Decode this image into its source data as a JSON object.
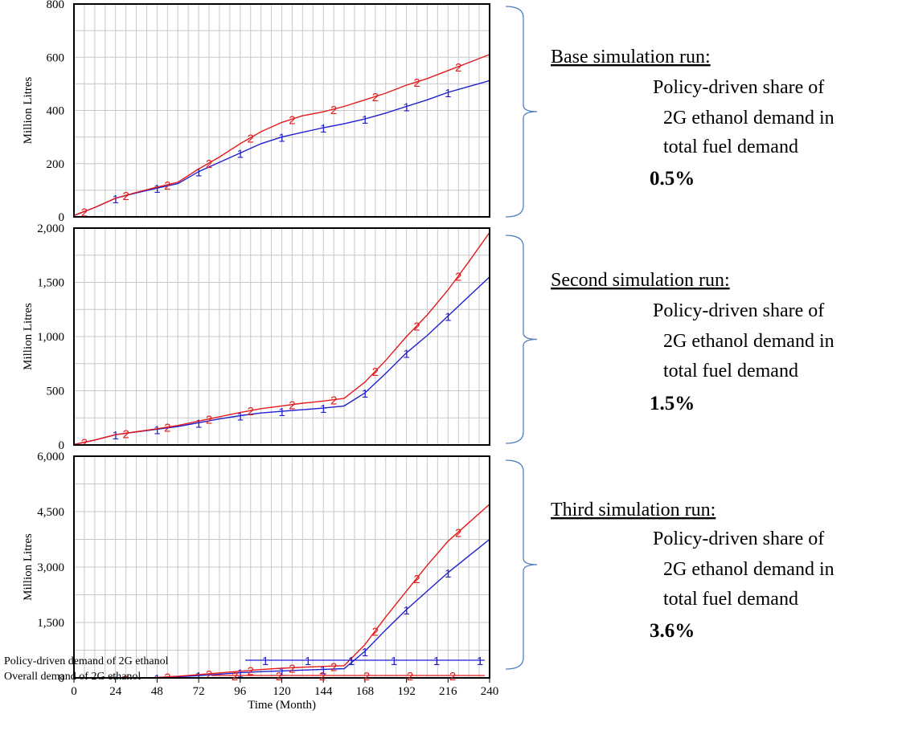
{
  "chart_data": [
    {
      "type": "line",
      "ylabel": "Million Litres",
      "ylim": [
        0,
        800
      ],
      "yticks": [
        0,
        200,
        400,
        600,
        800
      ],
      "ytick_labels": [
        "0",
        "200",
        "400",
        "600",
        "800"
      ],
      "xlim": [
        0,
        240
      ],
      "grid": true,
      "series": [
        {
          "name": "Policy-driven demand of 2G ethanol",
          "marker": "1",
          "color": "#1f1fd0",
          "points": [
            [
              0,
              5
            ],
            [
              12,
              35
            ],
            [
              24,
              70
            ],
            [
              36,
              90
            ],
            [
              48,
              108
            ],
            [
              60,
              125
            ],
            [
              72,
              170
            ],
            [
              84,
              205
            ],
            [
              96,
              240
            ],
            [
              108,
              275
            ],
            [
              120,
              300
            ],
            [
              132,
              318
            ],
            [
              144,
              335
            ],
            [
              156,
              350
            ],
            [
              168,
              368
            ],
            [
              180,
              390
            ],
            [
              192,
              415
            ],
            [
              204,
              440
            ],
            [
              216,
              468
            ],
            [
              228,
              490
            ],
            [
              240,
              512
            ]
          ],
          "marker_x": [
            0,
            24,
            48,
            72,
            96,
            120,
            144,
            168,
            192,
            216
          ]
        },
        {
          "name": "Overall demand of 2G ethanol",
          "marker": "2",
          "color": "#e41a1c",
          "points": [
            [
              0,
              5
            ],
            [
              12,
              35
            ],
            [
              24,
              70
            ],
            [
              36,
              92
            ],
            [
              48,
              112
            ],
            [
              60,
              130
            ],
            [
              72,
              180
            ],
            [
              84,
              225
            ],
            [
              96,
              275
            ],
            [
              108,
              320
            ],
            [
              120,
              355
            ],
            [
              132,
              380
            ],
            [
              144,
              395
            ],
            [
              156,
              415
            ],
            [
              168,
              440
            ],
            [
              180,
              465
            ],
            [
              192,
              495
            ],
            [
              204,
              520
            ],
            [
              216,
              550
            ],
            [
              228,
              580
            ],
            [
              240,
              610
            ]
          ],
          "marker_x": [
            6,
            30,
            54,
            78,
            102,
            126,
            150,
            174,
            198,
            222
          ]
        }
      ]
    },
    {
      "type": "line",
      "ylabel": "Million Litres",
      "ylim": [
        0,
        2000
      ],
      "yticks": [
        0,
        500,
        1000,
        1500,
        2000
      ],
      "ytick_labels": [
        "0",
        "500",
        "1,000",
        "1,500",
        "2,000"
      ],
      "xlim": [
        0,
        240
      ],
      "grid": true,
      "series": [
        {
          "name": "Policy-driven demand of 2G ethanol",
          "marker": "1",
          "color": "#1f1fd0",
          "points": [
            [
              0,
              5
            ],
            [
              12,
              45
            ],
            [
              24,
              95
            ],
            [
              36,
              120
            ],
            [
              48,
              145
            ],
            [
              60,
              170
            ],
            [
              72,
              205
            ],
            [
              84,
              240
            ],
            [
              96,
              270
            ],
            [
              108,
              295
            ],
            [
              120,
              310
            ],
            [
              132,
              325
            ],
            [
              144,
              340
            ],
            [
              156,
              360
            ],
            [
              168,
              480
            ],
            [
              180,
              660
            ],
            [
              192,
              850
            ],
            [
              204,
              1010
            ],
            [
              216,
              1190
            ],
            [
              228,
              1370
            ],
            [
              240,
              1550
            ]
          ],
          "marker_x": [
            0,
            24,
            48,
            72,
            96,
            120,
            144,
            168,
            192,
            216
          ]
        },
        {
          "name": "Overall demand of 2G ethanol",
          "marker": "2",
          "color": "#e41a1c",
          "points": [
            [
              0,
              5
            ],
            [
              12,
              45
            ],
            [
              24,
              95
            ],
            [
              36,
              122
            ],
            [
              48,
              150
            ],
            [
              60,
              180
            ],
            [
              72,
              220
            ],
            [
              84,
              260
            ],
            [
              96,
              300
            ],
            [
              108,
              335
            ],
            [
              120,
              360
            ],
            [
              132,
              385
            ],
            [
              144,
              405
            ],
            [
              156,
              430
            ],
            [
              168,
              580
            ],
            [
              180,
              780
            ],
            [
              192,
              1000
            ],
            [
              204,
              1200
            ],
            [
              216,
              1430
            ],
            [
              228,
              1690
            ],
            [
              240,
              1960
            ]
          ],
          "marker_x": [
            6,
            30,
            54,
            78,
            102,
            126,
            150,
            174,
            198,
            222
          ]
        }
      ]
    },
    {
      "type": "line",
      "ylabel": "Million Litres",
      "ylim": [
        0,
        6000
      ],
      "yticks": [
        0,
        1500,
        3000,
        4500,
        6000
      ],
      "ytick_labels": [
        "0",
        "1,500",
        "3,000",
        "4,500",
        "6,000"
      ],
      "xlim": [
        0,
        240
      ],
      "xticks": [
        0,
        24,
        48,
        72,
        96,
        120,
        144,
        168,
        192,
        216,
        240
      ],
      "xtick_labels": [
        "0",
        "24",
        "48",
        "72",
        "96",
        "120",
        "144",
        "168",
        "192",
        "216",
        "240"
      ],
      "xlabel": "Time (Month)",
      "grid": true,
      "series": [
        {
          "name": "Policy-driven demand of 2G ethanol",
          "marker": "1",
          "color": "#1f1fd0",
          "points": [
            [
              0,
              -150
            ],
            [
              12,
              -100
            ],
            [
              24,
              -50
            ],
            [
              36,
              -20
            ],
            [
              48,
              0
            ],
            [
              60,
              30
            ],
            [
              72,
              60
            ],
            [
              84,
              100
            ],
            [
              96,
              140
            ],
            [
              108,
              170
            ],
            [
              120,
              190
            ],
            [
              132,
              210
            ],
            [
              144,
              230
            ],
            [
              156,
              250
            ],
            [
              168,
              720
            ],
            [
              180,
              1300
            ],
            [
              192,
              1850
            ],
            [
              204,
              2350
            ],
            [
              216,
              2850
            ],
            [
              228,
              3300
            ],
            [
              240,
              3750
            ]
          ],
          "marker_x": [
            0,
            24,
            48,
            72,
            96,
            120,
            144,
            168,
            192,
            216
          ]
        },
        {
          "name": "Overall demand of 2G ethanol",
          "marker": "2",
          "color": "#e41a1c",
          "points": [
            [
              0,
              -150
            ],
            [
              12,
              -100
            ],
            [
              24,
              -50
            ],
            [
              36,
              -15
            ],
            [
              48,
              10
            ],
            [
              60,
              45
            ],
            [
              72,
              90
            ],
            [
              84,
              135
            ],
            [
              96,
              180
            ],
            [
              108,
              225
            ],
            [
              120,
              260
            ],
            [
              132,
              290
            ],
            [
              144,
              310
            ],
            [
              156,
              330
            ],
            [
              168,
              900
            ],
            [
              180,
              1650
            ],
            [
              192,
              2350
            ],
            [
              204,
              3050
            ],
            [
              216,
              3700
            ],
            [
              228,
              4200
            ],
            [
              240,
              4700
            ]
          ],
          "marker_x": [
            6,
            30,
            54,
            78,
            102,
            126,
            150,
            174,
            198,
            222
          ]
        }
      ]
    }
  ],
  "legend": {
    "items": [
      {
        "label": "Policy-driven demand of 2G ethanol",
        "marker": "1",
        "color": "#1f1fd0"
      },
      {
        "label": "Overall demand of 2G ethanol",
        "marker": "2",
        "color": "#e41a1c"
      }
    ]
  },
  "annotations": [
    {
      "heading": "Base simulation  run:",
      "line1": "Policy-driven  share of",
      "line2": "2G ethanol demand in",
      "line3": "total fuel demand",
      "percent": "0.5%"
    },
    {
      "heading": "Second simulation  run:",
      "line1": "Policy-driven  share of",
      "line2": "2G ethanol demand in",
      "line3": "total fuel demand",
      "percent": "1.5%"
    },
    {
      "heading": "Third simulation  run:",
      "line1": "Policy-driven  share of",
      "line2": "2G ethanol demand in",
      "line3": "total fuel demand",
      "percent": "3.6%"
    }
  ]
}
